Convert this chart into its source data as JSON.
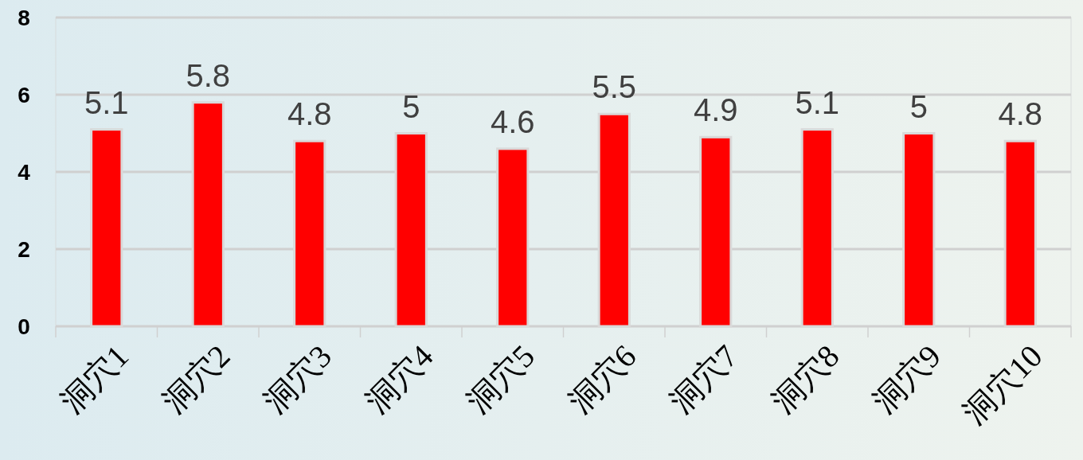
{
  "chart_data": {
    "type": "bar",
    "categories": [
      "洞穴1",
      "洞穴2",
      "洞穴3",
      "洞穴4",
      "洞穴5",
      "洞穴6",
      "洞穴7",
      "洞穴8",
      "洞穴9",
      "洞穴10"
    ],
    "values": [
      5.1,
      5.8,
      4.8,
      5,
      4.6,
      5.5,
      4.9,
      5.1,
      5,
      4.8
    ],
    "color": "#ff0000",
    "ylim": [
      0,
      8
    ],
    "yticks": [
      0,
      2,
      4,
      6,
      8
    ],
    "grid": "y",
    "data_labels": true
  }
}
